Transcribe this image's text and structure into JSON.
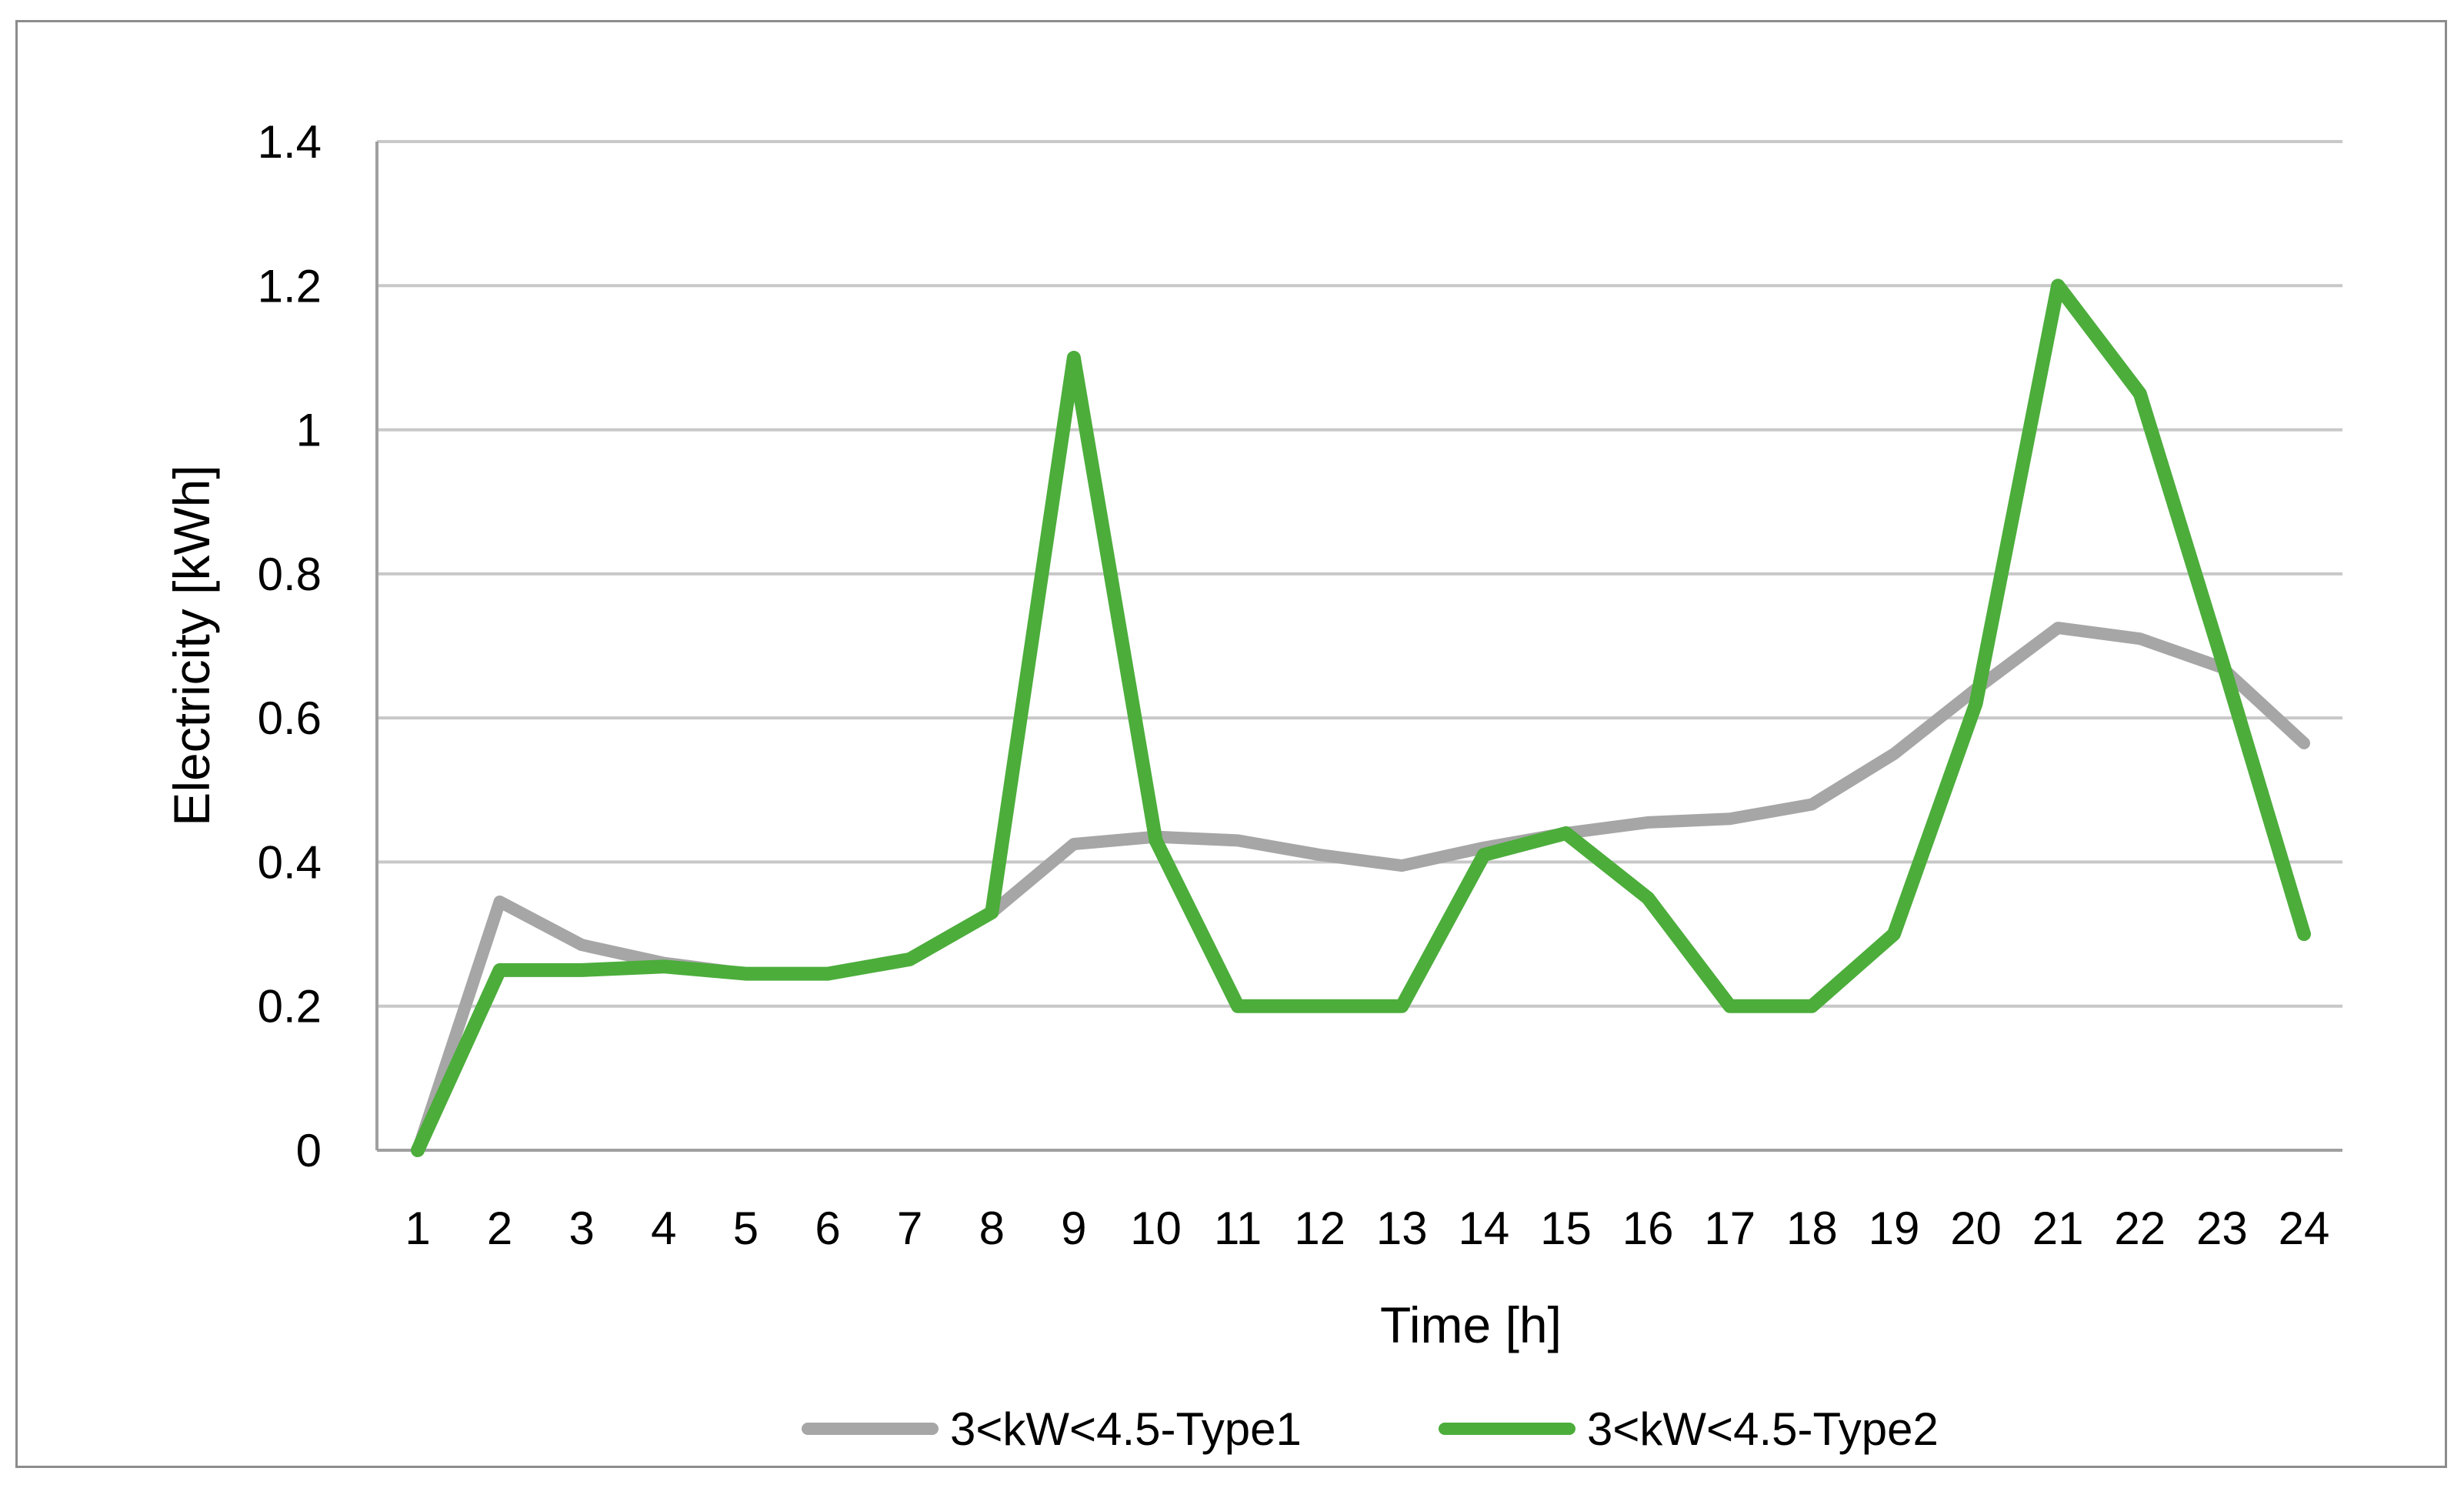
{
  "chart_data": {
    "type": "line",
    "title": "",
    "xlabel": "Time [h]",
    "ylabel": "Electricity [kWh]",
    "x": [
      "1",
      "2",
      "3",
      "4",
      "5",
      "6",
      "7",
      "8",
      "9",
      "10",
      "11",
      "12",
      "13",
      "14",
      "15",
      "16",
      "17",
      "18",
      "19",
      "20",
      "21",
      "22",
      "23",
      "24"
    ],
    "ylim": [
      0,
      1.4
    ],
    "yticks": [
      "0",
      "0.2",
      "0.4",
      "0.6",
      "0.8",
      "1",
      "1.2",
      "1.4"
    ],
    "ytick_values": [
      0,
      0.2,
      0.4,
      0.6,
      0.8,
      1,
      1.2,
      1.4
    ],
    "grid": "horizontal",
    "legend_position": "bottom",
    "series": [
      {
        "name": "3<kW<4.5-Type1",
        "color": "#a6a6a6",
        "values": [
          0,
          0.345,
          0.285,
          0.26,
          0.245,
          0.245,
          0.265,
          0.33,
          0.425,
          0.435,
          0.43,
          0.41,
          0.395,
          0.42,
          0.44,
          0.455,
          0.46,
          0.48,
          0.55,
          0.64,
          0.725,
          0.71,
          0.67,
          0.565
        ]
      },
      {
        "name": "3<kW<4.5-Type2",
        "color": "#4cad3b",
        "values": [
          0,
          0.25,
          0.25,
          0.255,
          0.245,
          0.245,
          0.265,
          0.33,
          1.1,
          0.43,
          0.2,
          0.2,
          0.2,
          0.41,
          0.44,
          0.35,
          0.2,
          0.2,
          0.3,
          0.62,
          1.2,
          1.05,
          0.68,
          0.3
        ]
      }
    ]
  }
}
